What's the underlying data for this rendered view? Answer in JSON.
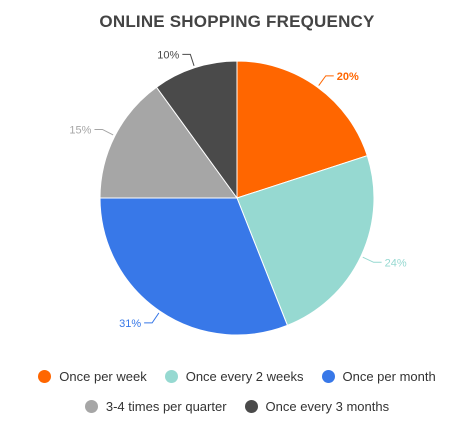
{
  "chart_data": {
    "type": "pie",
    "title": "ONLINE SHOPPING FREQUENCY",
    "slices": [
      {
        "label": "Once per week",
        "value": 20,
        "value_label": "20%",
        "color": "#ff6600"
      },
      {
        "label": "Once every 2 weeks",
        "value": 24,
        "value_label": "24%",
        "color": "#96d9d1"
      },
      {
        "label": "Once per month",
        "value": 31,
        "value_label": "31%",
        "color": "#3878e8"
      },
      {
        "label": "3-4 times per quarter",
        "value": 15,
        "value_label": "15%",
        "color": "#a6a6a6"
      },
      {
        "label": "Once every 3 months",
        "value": 10,
        "value_label": "10%",
        "color": "#4a4a4a"
      }
    ],
    "legend_position": "bottom",
    "start_angle": "12 o'clock",
    "direction": "clockwise"
  }
}
